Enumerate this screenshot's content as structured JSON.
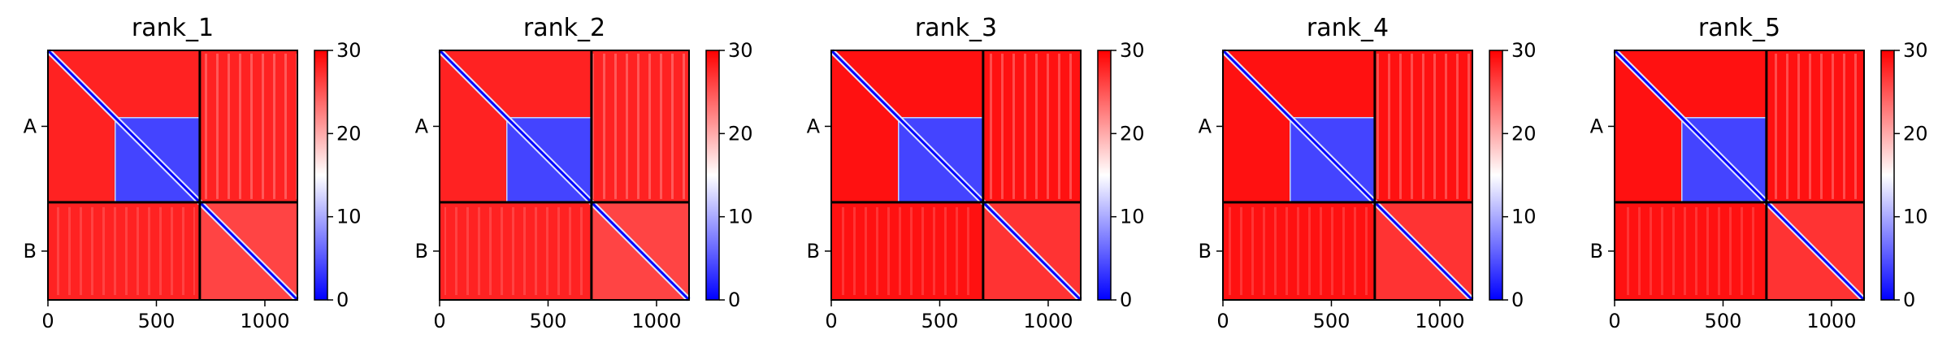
{
  "colorbar": {
    "ticks": [
      "0",
      "10",
      "20",
      "30"
    ],
    "colors": {
      "low": "#0000ff",
      "mid": "#ffffff",
      "high": "#ff0000"
    }
  },
  "chart_data": [
    {
      "type": "heatmap",
      "title": "rank_1",
      "xlabel": "",
      "ylabel": "",
      "xlim": [
        0,
        1150
      ],
      "vmin": 0,
      "vmax": 30,
      "x_ticks": [
        "0",
        "500",
        "1000"
      ],
      "y_ticks": [
        "A",
        "B"
      ],
      "chain_boundary": 700,
      "blocks": [
        {
          "rows": "A",
          "cols": "A",
          "region": [
            310,
            700
          ],
          "mean_value": 4
        },
        {
          "rows": "A",
          "cols": "B",
          "mean_value": 28
        },
        {
          "rows": "B",
          "cols": "A",
          "mean_value": 28
        },
        {
          "rows": "B",
          "cols": "B",
          "mean_value": 26
        }
      ]
    },
    {
      "type": "heatmap",
      "title": "rank_2",
      "xlabel": "",
      "ylabel": "",
      "xlim": [
        0,
        1150
      ],
      "vmin": 0,
      "vmax": 30,
      "x_ticks": [
        "0",
        "500",
        "1000"
      ],
      "y_ticks": [
        "A",
        "B"
      ],
      "chain_boundary": 700,
      "blocks": [
        {
          "rows": "A",
          "cols": "A",
          "region": [
            310,
            700
          ],
          "mean_value": 4
        },
        {
          "rows": "A",
          "cols": "B",
          "mean_value": 28
        },
        {
          "rows": "B",
          "cols": "A",
          "mean_value": 28
        },
        {
          "rows": "B",
          "cols": "B",
          "mean_value": 26
        }
      ]
    },
    {
      "type": "heatmap",
      "title": "rank_3",
      "xlabel": "",
      "ylabel": "",
      "xlim": [
        0,
        1150
      ],
      "vmin": 0,
      "vmax": 30,
      "x_ticks": [
        "0",
        "500",
        "1000"
      ],
      "y_ticks": [
        "A",
        "B"
      ],
      "chain_boundary": 700,
      "blocks": [
        {
          "rows": "A",
          "cols": "A",
          "region": [
            310,
            700
          ],
          "mean_value": 4
        },
        {
          "rows": "A",
          "cols": "B",
          "mean_value": 29
        },
        {
          "rows": "B",
          "cols": "A",
          "mean_value": 29
        },
        {
          "rows": "B",
          "cols": "B",
          "mean_value": 27
        }
      ]
    },
    {
      "type": "heatmap",
      "title": "rank_4",
      "xlabel": "",
      "ylabel": "",
      "xlim": [
        0,
        1150
      ],
      "vmin": 0,
      "vmax": 30,
      "x_ticks": [
        "0",
        "500",
        "1000"
      ],
      "y_ticks": [
        "A",
        "B"
      ],
      "chain_boundary": 700,
      "blocks": [
        {
          "rows": "A",
          "cols": "A",
          "region": [
            310,
            700
          ],
          "mean_value": 4
        },
        {
          "rows": "A",
          "cols": "B",
          "mean_value": 29
        },
        {
          "rows": "B",
          "cols": "A",
          "mean_value": 29
        },
        {
          "rows": "B",
          "cols": "B",
          "mean_value": 27
        }
      ]
    },
    {
      "type": "heatmap",
      "title": "rank_5",
      "xlabel": "",
      "ylabel": "",
      "xlim": [
        0,
        1150
      ],
      "vmin": 0,
      "vmax": 30,
      "x_ticks": [
        "0",
        "500",
        "1000"
      ],
      "y_ticks": [
        "A",
        "B"
      ],
      "chain_boundary": 700,
      "blocks": [
        {
          "rows": "A",
          "cols": "A",
          "region": [
            310,
            700
          ],
          "mean_value": 4
        },
        {
          "rows": "A",
          "cols": "B",
          "mean_value": 29
        },
        {
          "rows": "B",
          "cols": "A",
          "mean_value": 29
        },
        {
          "rows": "B",
          "cols": "B",
          "mean_value": 27
        }
      ]
    }
  ]
}
